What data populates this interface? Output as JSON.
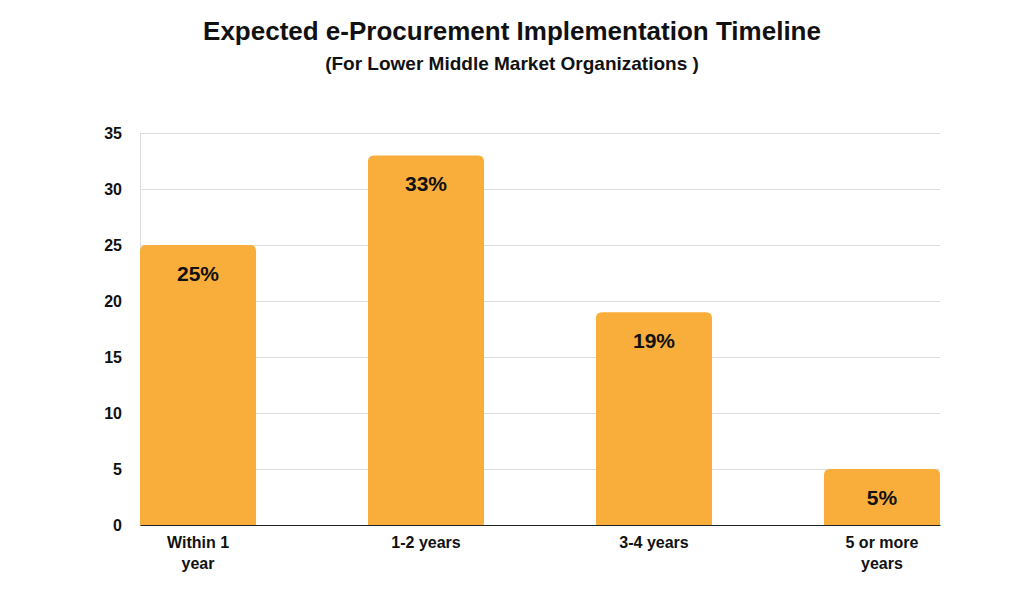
{
  "chart_data": {
    "type": "bar",
    "title": "Expected e-Procurement Implementation Timeline",
    "subtitle": "(For Lower Middle Market Organizations )",
    "categories": [
      "Within 1 year",
      "1-2 years",
      "3-4 years",
      "5 or more years"
    ],
    "values": [
      25,
      33,
      19,
      5
    ],
    "value_labels": [
      "25%",
      "33%",
      "19%",
      "5%"
    ],
    "data_labels": true,
    "color": "#f9ae3b",
    "ylim": [
      0,
      35
    ],
    "yticks": [
      0,
      5,
      10,
      15,
      20,
      25,
      30,
      35
    ],
    "grid": true
  }
}
